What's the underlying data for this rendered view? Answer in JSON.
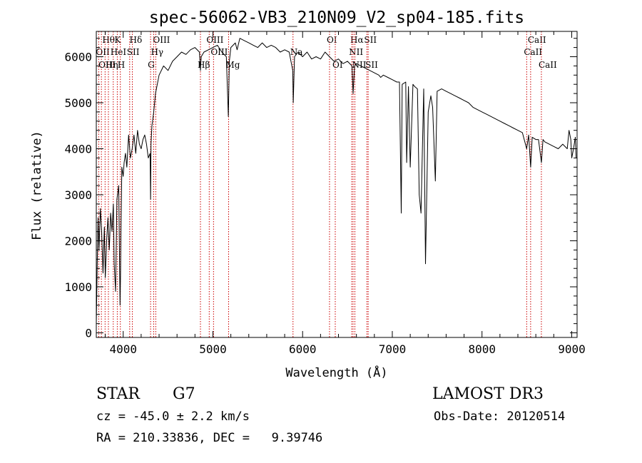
{
  "chart_data": {
    "type": "line",
    "title": "spec-56062-VB3_210N09_V2_sp04-185.fits",
    "xlabel": "Wavelength (Å)",
    "ylabel": "Flux (relative)",
    "xlim": [
      3700,
      9060
    ],
    "ylim": [
      -100,
      6550
    ],
    "x_ticks": [
      4000,
      5000,
      6000,
      7000,
      8000,
      9000
    ],
    "y_ticks": [
      0,
      1000,
      2000,
      3000,
      4000,
      5000,
      6000
    ],
    "x_tick_labels": [
      "4000",
      "5000",
      "6000",
      "7000",
      "8000",
      "9000"
    ],
    "y_tick_labels": [
      "0",
      "1000",
      "2000",
      "3000",
      "4000",
      "5000",
      "6000"
    ],
    "series": [
      {
        "name": "flux",
        "x": [
          3700,
          3710,
          3720,
          3730,
          3745,
          3760,
          3775,
          3790,
          3800,
          3815,
          3830,
          3845,
          3860,
          3875,
          3890,
          3900,
          3915,
          3930,
          3950,
          3965,
          3970,
          3975,
          3985,
          4000,
          4010,
          4025,
          4040,
          4060,
          4080,
          4100,
          4120,
          4140,
          4160,
          4180,
          4200,
          4220,
          4240,
          4260,
          4280,
          4300,
          4305,
          4310,
          4320,
          4340,
          4360,
          4380,
          4400,
          4450,
          4500,
          4550,
          4600,
          4650,
          4700,
          4750,
          4800,
          4850,
          4861,
          4870,
          4900,
          4950,
          5000,
          5050,
          5100,
          5150,
          5172,
          5183,
          5200,
          5250,
          5270,
          5300,
          5350,
          5400,
          5450,
          5500,
          5550,
          5600,
          5650,
          5700,
          5750,
          5800,
          5850,
          5890,
          5896,
          5910,
          5950,
          6000,
          6050,
          6100,
          6150,
          6200,
          6250,
          6300,
          6350,
          6400,
          6450,
          6500,
          6550,
          6563,
          6580,
          6600,
          6650,
          6700,
          6750,
          6800,
          6850,
          6870,
          6900,
          6950,
          7000,
          7050,
          7080,
          7100,
          7110,
          7150,
          7160,
          7180,
          7200,
          7230,
          7250,
          7280,
          7300,
          7320,
          7350,
          7370,
          7400,
          7430,
          7450,
          7480,
          7500,
          7550,
          7600,
          7650,
          7700,
          7750,
          7800,
          7850,
          7900,
          7950,
          8000,
          8050,
          8100,
          8150,
          8200,
          8250,
          8300,
          8350,
          8400,
          8450,
          8498,
          8520,
          8542,
          8560,
          8600,
          8630,
          8662,
          8680,
          8700,
          8750,
          8800,
          8850,
          8900,
          8950,
          8970,
          8990,
          9000,
          9020,
          9040,
          9050
        ],
        "y": [
          200,
          1500,
          2500,
          1800,
          2700,
          2200,
          1300,
          2300,
          1200,
          2000,
          2500,
          1800,
          2600,
          2200,
          2800,
          1500,
          900,
          2900,
          3200,
          600,
          1300,
          2200,
          3600,
          3400,
          3700,
          3900,
          3600,
          4300,
          3800,
          4000,
          4300,
          3900,
          4400,
          4100,
          4000,
          4200,
          4300,
          4100,
          3800,
          3900,
          2900,
          4100,
          4500,
          4800,
          5200,
          5400,
          5600,
          5800,
          5700,
          5900,
          6000,
          6100,
          6050,
          6150,
          6200,
          6100,
          5700,
          6000,
          6100,
          6150,
          6200,
          6250,
          6100,
          6000,
          4700,
          5900,
          6200,
          6300,
          6150,
          6400,
          6350,
          6300,
          6250,
          6200,
          6300,
          6200,
          6250,
          6200,
          6100,
          6150,
          6100,
          5700,
          5000,
          6000,
          6100,
          6000,
          6100,
          5950,
          6000,
          5950,
          6100,
          6000,
          5900,
          5950,
          5850,
          5900,
          5800,
          5200,
          5800,
          5850,
          5800,
          5750,
          5700,
          5650,
          5600,
          5550,
          5600,
          5550,
          5500,
          5450,
          5450,
          2600,
          5400,
          5450,
          3700,
          5350,
          3600,
          5400,
          5350,
          5300,
          3000,
          2600,
          5300,
          1500,
          4800,
          5150,
          4900,
          3300,
          5250,
          5300,
          5250,
          5200,
          5150,
          5100,
          5050,
          5000,
          4900,
          4850,
          4800,
          4750,
          4700,
          4650,
          4600,
          4550,
          4500,
          4450,
          4400,
          4350,
          4000,
          4300,
          3600,
          4250,
          4200,
          4200,
          3700,
          4200,
          4150,
          4100,
          4050,
          4000,
          4100,
          4000,
          4400,
          4200,
          3800,
          4000,
          4250,
          3800
        ]
      }
    ],
    "spectral_lines": [
      {
        "label": "Hθ",
        "x": 3798,
        "row": 0
      },
      {
        "label": "K",
        "x": 3934,
        "row": 0
      },
      {
        "label": "Hδ",
        "x": 4102,
        "row": 0
      },
      {
        "label": "OII",
        "x": 3727,
        "row": 1
      },
      {
        "label": "HeI",
        "x": 3889,
        "row": 1
      },
      {
        "label": "SII",
        "x": 4072,
        "row": 1
      },
      {
        "label": "OIII",
        "x": 3757,
        "row": 2
      },
      {
        "label": "Hη",
        "x": 3835,
        "row": 2
      },
      {
        "label": "H",
        "x": 3968,
        "row": 2
      },
      {
        "label": "OIII",
        "x": 4363,
        "row": 0
      },
      {
        "label": "Hγ",
        "x": 4340,
        "row": 1
      },
      {
        "label": "G",
        "x": 4305,
        "row": 2
      },
      {
        "label": "OIII",
        "x": 4959,
        "row": 0
      },
      {
        "label": "OIII",
        "x": 5007,
        "row": 1
      },
      {
        "label": "Hβ",
        "x": 4861,
        "row": 2
      },
      {
        "label": "Mg",
        "x": 5175,
        "row": 2
      },
      {
        "label": "Na",
        "x": 5893,
        "row": 1
      },
      {
        "label": "OI",
        "x": 6300,
        "row": 0
      },
      {
        "label": "OI",
        "x": 6364,
        "row": 2
      },
      {
        "label": "Hα",
        "x": 6563,
        "row": 0
      },
      {
        "label": "SII",
        "x": 6717,
        "row": 0
      },
      {
        "label": "NII",
        "x": 6548,
        "row": 1
      },
      {
        "label": "NII",
        "x": 6583,
        "row": 2
      },
      {
        "label": "SII",
        "x": 6731,
        "row": 2
      },
      {
        "label": "CaII",
        "x": 8542,
        "row": 0
      },
      {
        "label": "CaII",
        "x": 8498,
        "row": 1
      },
      {
        "label": "CaII",
        "x": 8662,
        "row": 2
      }
    ],
    "line_color": "#000000",
    "marker_color": "#cc0000"
  },
  "info": {
    "object_type": "STAR",
    "subclass": "G7",
    "survey": "LAMOST DR3",
    "cz": "cz = -45.0 ± 2.2 km/s",
    "obs_date": "Obs-Date: 20120514",
    "coords": "RA = 210.33836, DEC =   9.39746"
  }
}
